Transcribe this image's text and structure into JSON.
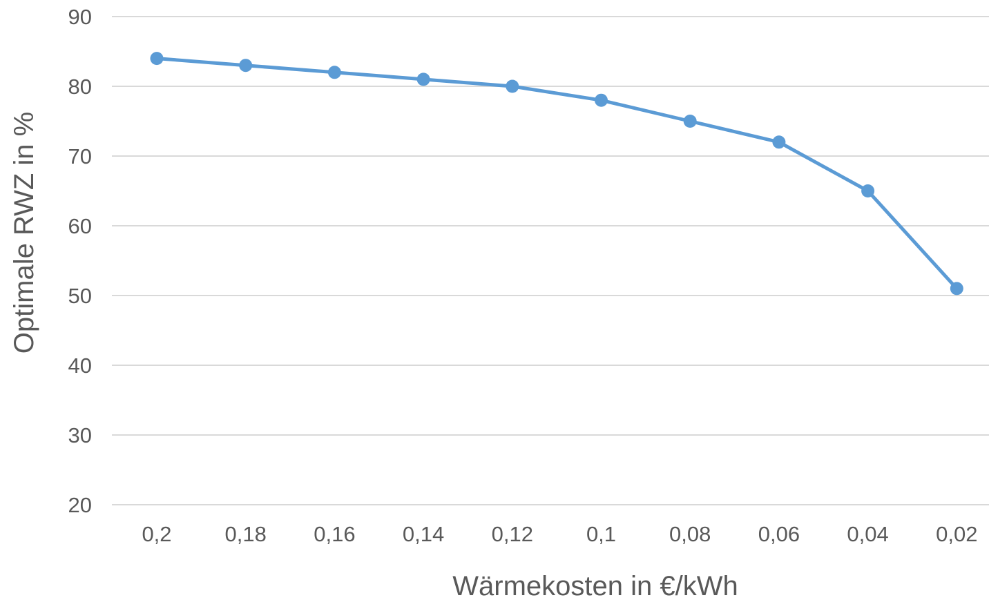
{
  "chart_data": {
    "type": "line",
    "xlabel": "Wärmekosten in €/kWh",
    "ylabel": "Optimale RWZ in %",
    "categories": [
      "0,2",
      "0,18",
      "0,16",
      "0,14",
      "0,12",
      "0,1",
      "0,08",
      "0,06",
      "0,04",
      "0,02"
    ],
    "series": [
      {
        "values": [
          84,
          83,
          82,
          81,
          80,
          78,
          75,
          72,
          65,
          51
        ],
        "color": "#5b9bd5"
      }
    ],
    "ylim": [
      20,
      90
    ],
    "yticks": [
      20,
      30,
      40,
      50,
      60,
      70,
      80,
      90
    ],
    "ytick_labels": [
      "20",
      "30",
      "40",
      "50",
      "60",
      "70",
      "80",
      "90"
    ],
    "grid": true,
    "legend": "none"
  }
}
